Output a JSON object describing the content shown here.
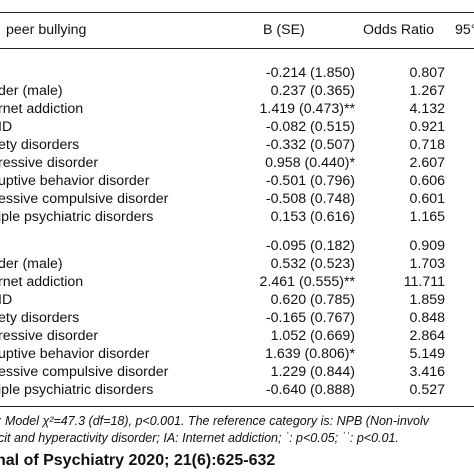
{
  "table": {
    "headers": {
      "variable": "peer bullying",
      "b_se": "B (SE)",
      "odds_ratio": "Odds Ratio",
      "ci": "95°"
    },
    "group1": [
      {
        "label": "",
        "b": "-0.214 (1.850)",
        "or": "0.807"
      },
      {
        "label": "der (male)",
        "b": "0.237 (0.365)",
        "or": "1.267"
      },
      {
        "label": "rnet addiction",
        "b": "1.419 (0.473)**",
        "or": "4.132"
      },
      {
        "label": "ID",
        "b": "-0.082 (0.515)",
        "or": "0.921"
      },
      {
        "label": "ety disorders",
        "b": "-0.332 (0.507)",
        "or": "0.718"
      },
      {
        "label": "ressive disorder",
        "b": "0.958 (0.440)*",
        "or": "2.607"
      },
      {
        "label": "uptive behavior disorder",
        "b": "-0.501 (0.796)",
        "or": "0.606"
      },
      {
        "label": "essive compulsive disorder",
        "b": "-0.508 (0.748)",
        "or": "0.601"
      },
      {
        "label": "iple psychiatric disorders",
        "b": "0.153 (0.616)",
        "or": "1.165"
      }
    ],
    "group2": [
      {
        "label": "",
        "b": "-0.095 (0.182)",
        "or": "0.909"
      },
      {
        "label": "der (male)",
        "b": "0.532 (0.523)",
        "or": "1.703"
      },
      {
        "label": "rnet addiction",
        "b": "2.461 (0.555)**",
        "or": "11.711"
      },
      {
        "label": "ID",
        "b": "0.620 (0.785)",
        "or": "1.859"
      },
      {
        "label": "ety disorders",
        "b": "-0.165 (0.767)",
        "or": "0.848"
      },
      {
        "label": "ressive disorder",
        "b": "1.052 (0.669)",
        "or": "2.864"
      },
      {
        "label": "uptive behavior disorder",
        "b": "1.639 (0.806)*",
        "or": "5.149"
      },
      {
        "label": "essive compulsive disorder",
        "b": "1.229 (0.844)",
        "or": "3.416"
      },
      {
        "label": "iple psychiatric disorders",
        "b": "-0.640 (0.888)",
        "or": "0.527"
      }
    ]
  },
  "notes": {
    "line1": ": Model χ²=47.3 (df=18), p<0.001. The reference category is: NPB (Non-involv",
    "line2": "cit and hyperactivity disorder;  IA: Internet addiction;  ˙: p<0.05;  ˙˙: p<0.01."
  },
  "journal": "nal of Psychiatry 2020; 21(6):625-632"
}
